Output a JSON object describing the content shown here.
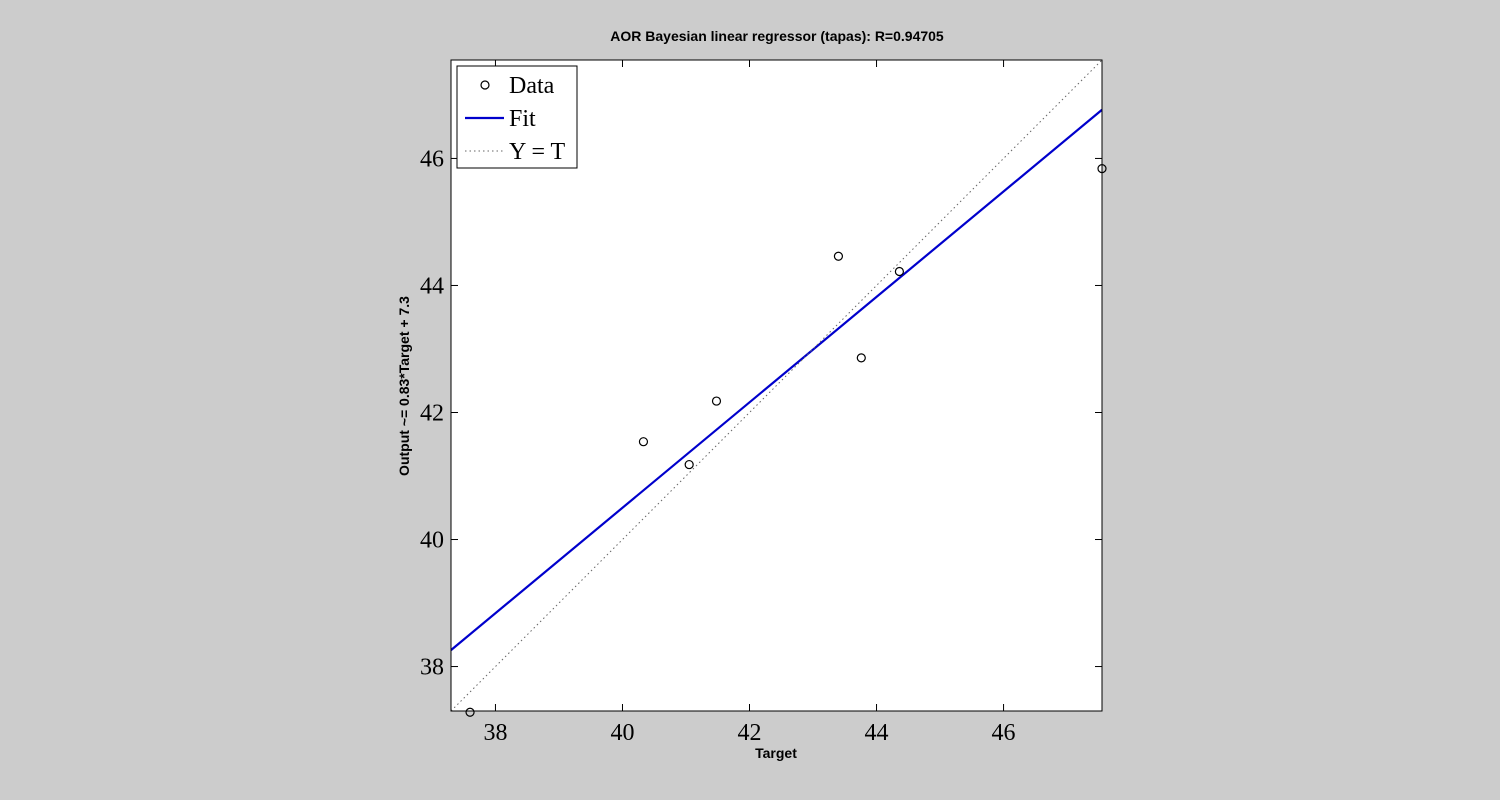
{
  "chart_data": {
    "type": "scatter",
    "title": "AOR Bayesian linear regressor (tapas): R=0.94705",
    "xlabel": "Target",
    "ylabel": "Output ~= 0.83*Target + 7.3",
    "xlim": [
      37.3,
      47.55
    ],
    "ylim": [
      37.3,
      47.55
    ],
    "xticks": [
      38,
      40,
      42,
      44,
      46
    ],
    "yticks": [
      38,
      40,
      42,
      44,
      46
    ],
    "grid": false,
    "legend_position": "top-left",
    "series": [
      {
        "name": "Data",
        "kind": "markers",
        "marker": "circle",
        "color": "#000000",
        "points": [
          {
            "x": 37.6,
            "y": 37.28
          },
          {
            "x": 40.33,
            "y": 41.54
          },
          {
            "x": 41.05,
            "y": 41.18
          },
          {
            "x": 41.48,
            "y": 42.18
          },
          {
            "x": 43.4,
            "y": 44.46
          },
          {
            "x": 43.76,
            "y": 42.86
          },
          {
            "x": 44.36,
            "y": 44.22
          },
          {
            "x": 47.55,
            "y": 45.84
          }
        ]
      },
      {
        "name": "Fit",
        "kind": "line",
        "color": "#0000cc",
        "slope": 0.83,
        "intercept": 7.3
      },
      {
        "name": "Y = T",
        "kind": "dotted-line",
        "color": "#666666",
        "slope": 1,
        "intercept": 0
      }
    ]
  }
}
